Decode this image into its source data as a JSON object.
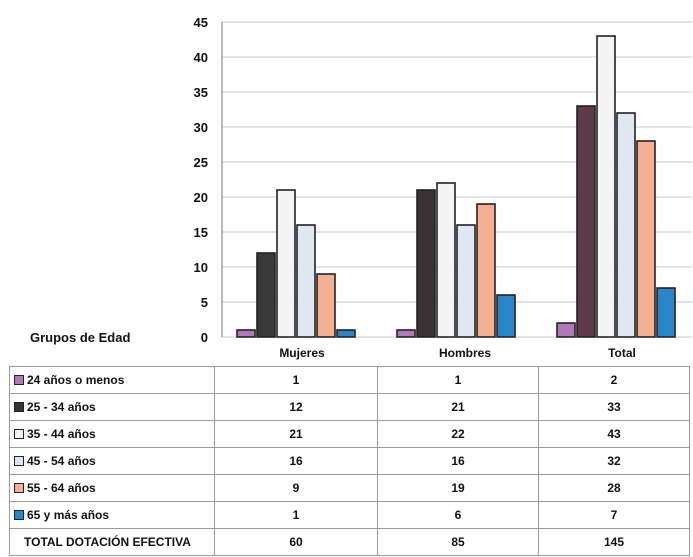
{
  "chart_data": {
    "type": "bar",
    "categories": [
      "Mujeres",
      "Hombres",
      "Total"
    ],
    "row_header": "Grupos de Edad",
    "ylim": [
      0,
      45
    ],
    "yticks": [
      0,
      5,
      10,
      15,
      20,
      25,
      30,
      35,
      40,
      45
    ],
    "grid": true,
    "series": [
      {
        "name": "24 años o menos",
        "color": "#b07ab8",
        "values": [
          1,
          1,
          2
        ]
      },
      {
        "name": "25 - 34 años",
        "color": "#3a3336",
        "values": [
          12,
          21,
          33
        ]
      },
      {
        "name": "35 - 44 años",
        "color": "#f4f4f6",
        "values": [
          21,
          22,
          43
        ]
      },
      {
        "name": "45 - 54 años",
        "color": "#dfe8f0",
        "values": [
          16,
          16,
          32
        ]
      },
      {
        "name": "55 - 64 años",
        "color": "#f3ae94",
        "values": [
          9,
          19,
          28
        ]
      },
      {
        "name": "65 y más años",
        "color": "#2a86c9",
        "values": [
          1,
          6,
          7
        ]
      }
    ],
    "totals": {
      "name": "TOTAL DOTACIÓN EFECTIVA",
      "values": [
        60,
        85,
        145
      ]
    },
    "dark_mujeres_color": "#3a3a3a",
    "total_group_dark_color": "#5c3a48"
  }
}
